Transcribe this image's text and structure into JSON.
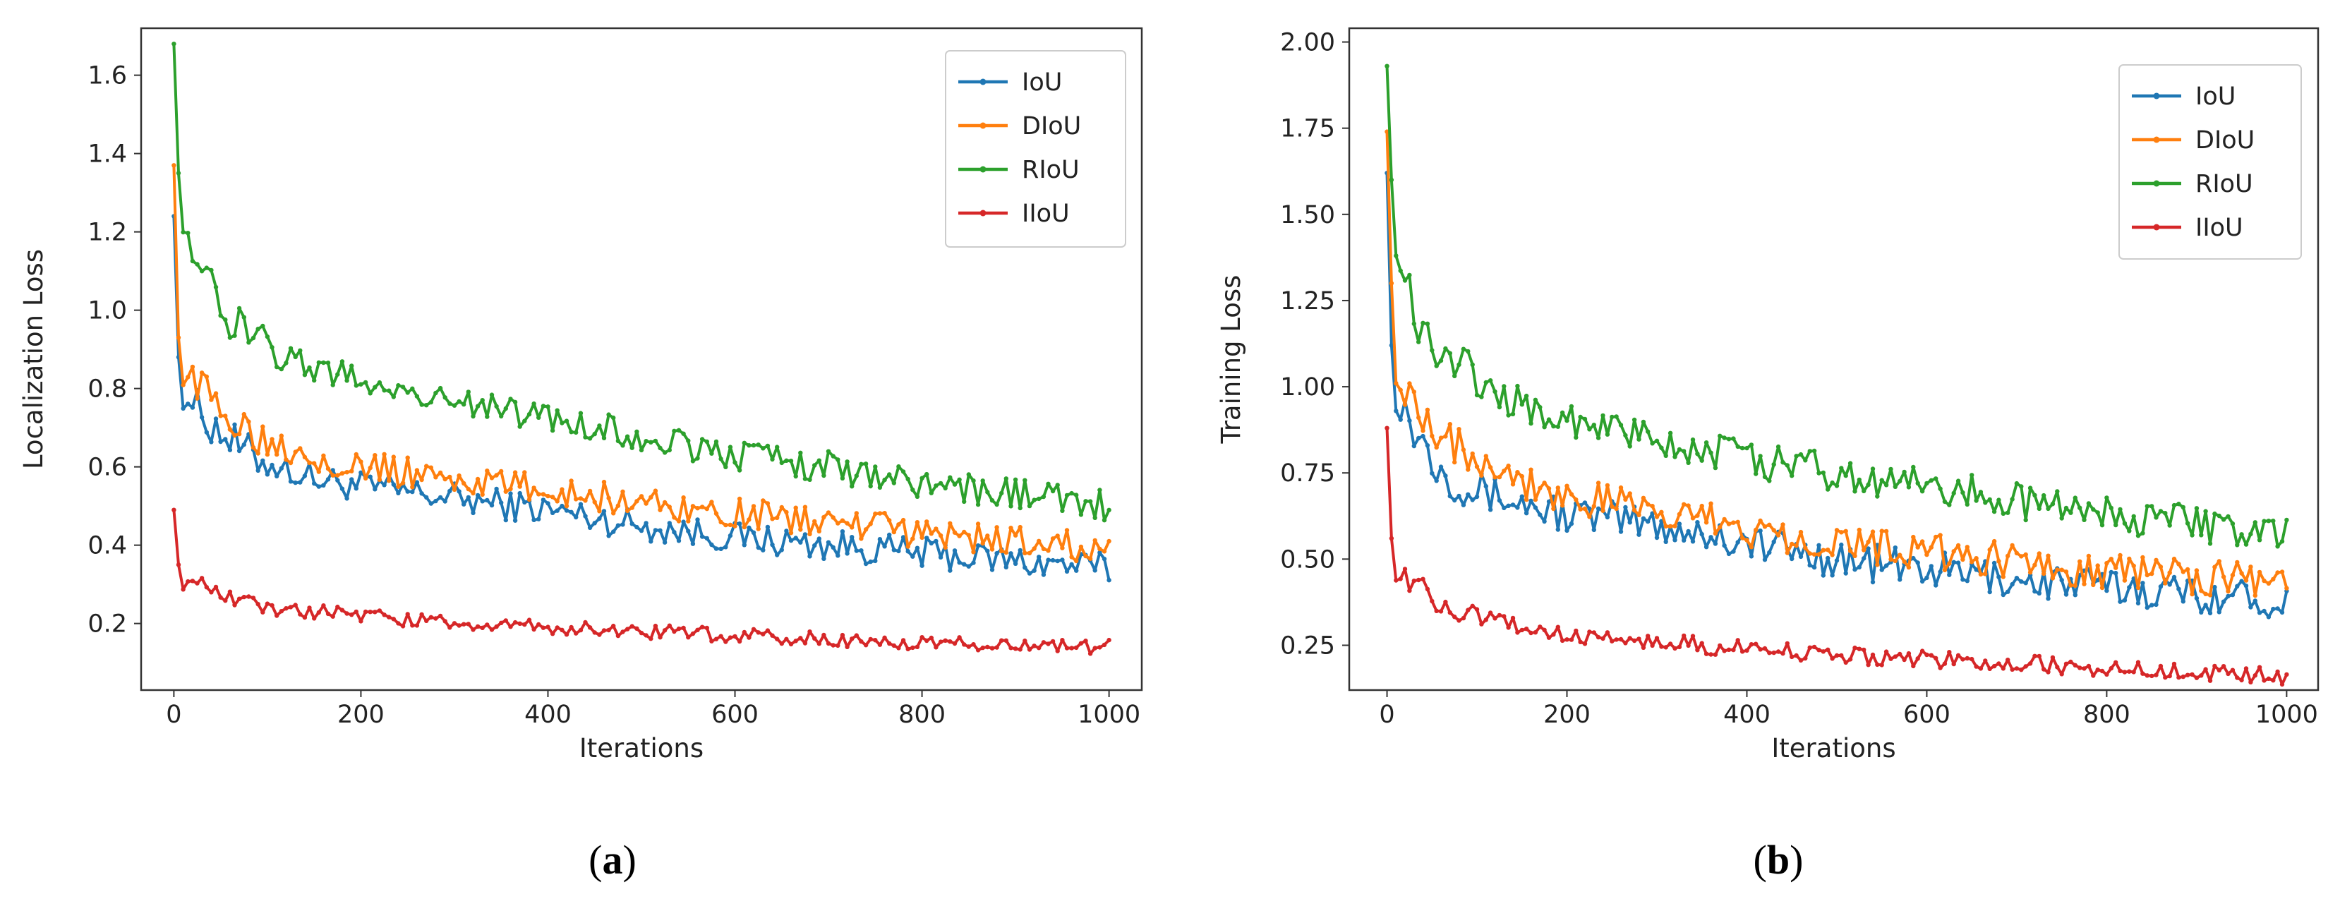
{
  "colors": {
    "IoU": "#1f77b4",
    "DIoU": "#ff7f0e",
    "RIoU": "#2ca02c",
    "IIoU": "#d62728"
  },
  "chart_data": [
    {
      "type": "line",
      "caption": "(a)",
      "caption_letter": "a",
      "title": "",
      "xlabel": "Iterations",
      "ylabel": "Localization Loss",
      "xlim": [
        -35,
        1035
      ],
      "ylim": [
        0.03,
        1.72
      ],
      "xticks": [
        0,
        200,
        400,
        600,
        800,
        1000
      ],
      "xtick_labels": [
        "0",
        "200",
        "400",
        "600",
        "800",
        "1000"
      ],
      "yticks": [
        0.2,
        0.4,
        0.6,
        0.8,
        1.0,
        1.2,
        1.4,
        1.6
      ],
      "ytick_labels": [
        "0.2",
        "0.4",
        "0.6",
        "0.8",
        "1.0",
        "1.2",
        "1.4",
        "1.6"
      ],
      "legend": [
        "IoU",
        "DIoU",
        "RIoU",
        "IIoU"
      ],
      "legend_position": "top-right",
      "grid": false,
      "series": [
        {
          "name": "IoU",
          "x": [
            0,
            5,
            10,
            20,
            35,
            50,
            75,
            100,
            150,
            200,
            300,
            400,
            500,
            600,
            700,
            800,
            900,
            1000
          ],
          "values": [
            1.24,
            0.88,
            0.8,
            0.76,
            0.72,
            0.69,
            0.64,
            0.61,
            0.57,
            0.55,
            0.52,
            0.49,
            0.45,
            0.42,
            0.4,
            0.38,
            0.36,
            0.34
          ]
        },
        {
          "name": "DIoU",
          "x": [
            0,
            5,
            10,
            20,
            35,
            50,
            75,
            100,
            150,
            200,
            300,
            400,
            500,
            600,
            700,
            800,
            900,
            1000
          ],
          "values": [
            1.37,
            0.93,
            0.86,
            0.82,
            0.78,
            0.75,
            0.71,
            0.67,
            0.63,
            0.6,
            0.57,
            0.54,
            0.51,
            0.48,
            0.46,
            0.43,
            0.41,
            0.39
          ]
        },
        {
          "name": "RIoU",
          "x": [
            0,
            5,
            10,
            20,
            35,
            50,
            75,
            100,
            150,
            200,
            300,
            400,
            500,
            600,
            700,
            800,
            900,
            1000
          ],
          "values": [
            1.68,
            1.35,
            1.25,
            1.15,
            1.08,
            1.0,
            0.95,
            0.9,
            0.85,
            0.82,
            0.77,
            0.72,
            0.68,
            0.63,
            0.6,
            0.56,
            0.53,
            0.5
          ]
        },
        {
          "name": "IIoU",
          "x": [
            0,
            5,
            10,
            20,
            35,
            50,
            75,
            100,
            150,
            200,
            300,
            400,
            500,
            600,
            700,
            800,
            900,
            1000
          ],
          "values": [
            0.49,
            0.35,
            0.31,
            0.3,
            0.29,
            0.27,
            0.25,
            0.24,
            0.23,
            0.22,
            0.2,
            0.19,
            0.18,
            0.17,
            0.16,
            0.15,
            0.145,
            0.14
          ]
        }
      ]
    },
    {
      "type": "line",
      "caption": "(b)",
      "caption_letter": "b",
      "title": "",
      "xlabel": "Iterations",
      "ylabel": "Training Loss",
      "xlim": [
        -42,
        1035
      ],
      "ylim": [
        0.12,
        2.04
      ],
      "xticks": [
        0,
        200,
        400,
        600,
        800,
        1000
      ],
      "xtick_labels": [
        "0",
        "200",
        "400",
        "600",
        "800",
        "1000"
      ],
      "yticks": [
        0.25,
        0.5,
        0.75,
        1.0,
        1.25,
        1.5,
        1.75,
        2.0
      ],
      "ytick_labels": [
        "0.25",
        "0.50",
        "0.75",
        "1.00",
        "1.25",
        "1.50",
        "1.75",
        "2.00"
      ],
      "legend": [
        "IoU",
        "DIoU",
        "RIoU",
        "IIoU"
      ],
      "legend_position": "top-right",
      "grid": false,
      "series": [
        {
          "name": "IoU",
          "x": [
            0,
            5,
            10,
            20,
            35,
            50,
            75,
            100,
            150,
            200,
            300,
            400,
            500,
            600,
            700,
            800,
            900,
            1000
          ],
          "values": [
            1.62,
            1.12,
            1.0,
            0.93,
            0.86,
            0.8,
            0.74,
            0.7,
            0.66,
            0.63,
            0.6,
            0.55,
            0.5,
            0.47,
            0.44,
            0.42,
            0.4,
            0.38
          ]
        },
        {
          "name": "DIoU",
          "x": [
            0,
            5,
            10,
            20,
            35,
            50,
            75,
            100,
            150,
            200,
            300,
            400,
            500,
            600,
            700,
            800,
            900,
            1000
          ],
          "values": [
            1.74,
            1.3,
            1.08,
            1.0,
            0.95,
            0.9,
            0.84,
            0.8,
            0.73,
            0.68,
            0.64,
            0.59,
            0.55,
            0.52,
            0.49,
            0.47,
            0.45,
            0.43
          ]
        },
        {
          "name": "RIoU",
          "x": [
            0,
            5,
            10,
            20,
            35,
            50,
            75,
            100,
            150,
            200,
            300,
            400,
            500,
            600,
            700,
            800,
            900,
            1000
          ],
          "values": [
            1.93,
            1.6,
            1.45,
            1.3,
            1.2,
            1.14,
            1.08,
            1.02,
            0.95,
            0.9,
            0.84,
            0.79,
            0.75,
            0.71,
            0.67,
            0.63,
            0.6,
            0.56
          ]
        },
        {
          "name": "IIoU",
          "x": [
            0,
            5,
            10,
            20,
            35,
            50,
            75,
            100,
            150,
            200,
            300,
            400,
            500,
            600,
            700,
            800,
            900,
            1000
          ],
          "values": [
            0.88,
            0.56,
            0.47,
            0.44,
            0.42,
            0.39,
            0.35,
            0.33,
            0.3,
            0.28,
            0.26,
            0.24,
            0.22,
            0.21,
            0.2,
            0.18,
            0.17,
            0.16
          ]
        }
      ]
    }
  ]
}
